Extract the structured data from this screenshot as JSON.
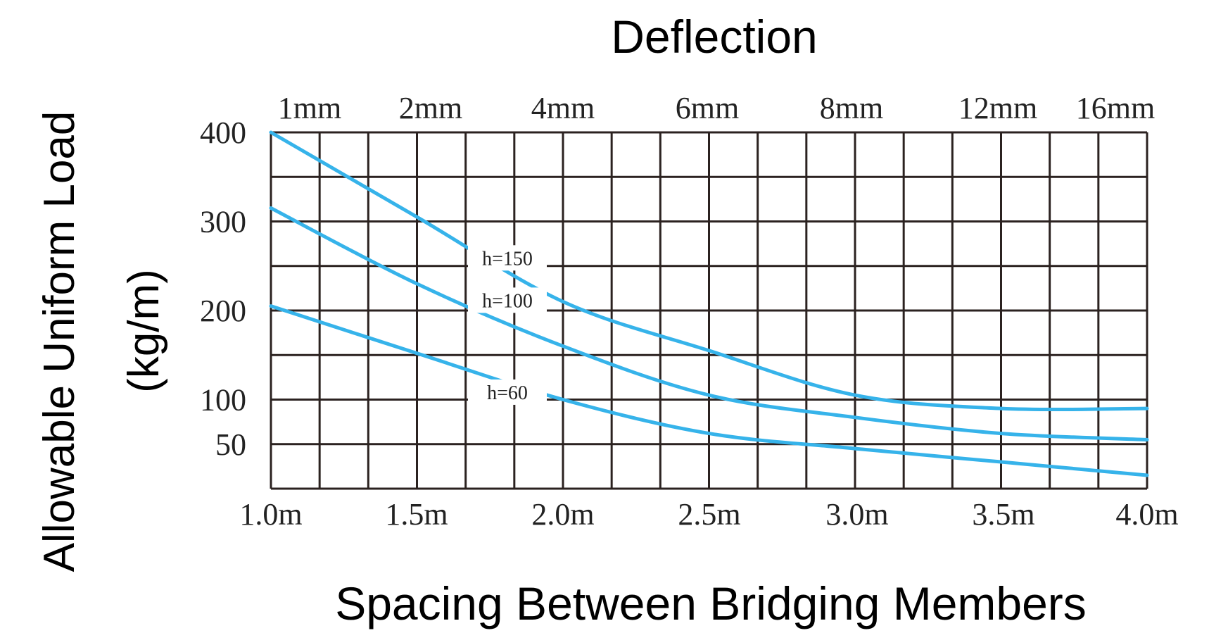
{
  "chart_data": {
    "type": "line",
    "title": "Deflection",
    "xlabel": "Spacing Between Bridging Members",
    "ylabel_line1": "Allowable Uniform Load",
    "ylabel_line2": "(kg/m)",
    "x_ticks": [
      "1.0m",
      "1.5m",
      "2.0m",
      "2.5m",
      "3.0m",
      "3.5m",
      "4.0m"
    ],
    "top_ticks": [
      "1mm",
      "2mm",
      "4mm",
      "6mm",
      "8mm",
      "12mm",
      "16mm"
    ],
    "y_ticks": [
      "400",
      "300",
      "200",
      "100",
      "50"
    ],
    "xlim": [
      1.0,
      4.0
    ],
    "grid": true,
    "line_color": "#36b3ea",
    "series": [
      {
        "name": "h=150",
        "x": [
          1.0,
          1.5,
          2.0,
          2.5,
          3.0,
          3.5,
          4.0
        ],
        "y": [
          400,
          305,
          210,
          155,
          105,
          90,
          90
        ]
      },
      {
        "name": "h=100",
        "x": [
          1.0,
          1.5,
          2.0,
          2.5,
          3.0,
          3.5,
          4.0
        ],
        "y": [
          315,
          230,
          160,
          105,
          80,
          62,
          55
        ]
      },
      {
        "name": "h=60",
        "x": [
          1.0,
          1.5,
          2.0,
          2.5,
          3.0,
          3.5,
          4.0
        ],
        "y": [
          205,
          152,
          100,
          62,
          45,
          30,
          15
        ]
      }
    ]
  }
}
